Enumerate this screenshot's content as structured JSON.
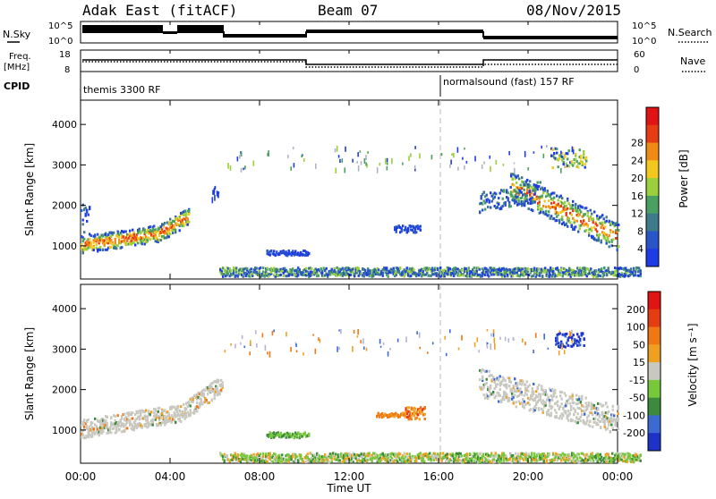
{
  "header": {
    "radar": "Adak East (fitACF)",
    "beam": "Beam 07",
    "date": "08/Nov/2015"
  },
  "top_panels": {
    "nsky_label": "N.Sky",
    "nsky_ticks": [
      "10^5",
      "10^0"
    ],
    "nsearch_label": "N.Search",
    "freq_label_1": "Freq.",
    "freq_label_2": "[MHz]",
    "freq_ticks": [
      "18",
      "8"
    ],
    "nave_label": "Nave",
    "nave_ticks": [
      "60",
      "0"
    ],
    "cpid_label": "CPID",
    "cpid_segments": [
      "themis 3300 RF",
      "normalsound (fast) 157 RF"
    ]
  },
  "chart_data": [
    {
      "type": "heatmap",
      "panel": "power",
      "ylabel": "Slant Range [km]",
      "yticks": [
        1000,
        2000,
        3000,
        4000
      ],
      "ylim": [
        180,
        4600
      ],
      "xlim": [
        0,
        24
      ],
      "colorbar": {
        "label": "Power [dB]",
        "ticks": [
          4,
          8,
          12,
          16,
          20,
          24,
          28
        ],
        "colors": [
          "#1e3ce6",
          "#2a55c8",
          "#3f7a8a",
          "#4aa060",
          "#9ccf3c",
          "#f2c81e",
          "#f08a16",
          "#e63c14",
          "#e01414"
        ]
      }
    },
    {
      "type": "heatmap",
      "panel": "velocity",
      "ylabel": "Slant Range [km]",
      "yticks": [
        1000,
        2000,
        3000,
        4000
      ],
      "ylim": [
        180,
        4600
      ],
      "xlim": [
        0,
        24
      ],
      "colorbar": {
        "label": "Velocity [m s⁻¹]",
        "ticks": [
          "200",
          "100",
          "50",
          "15",
          "-15",
          "-50",
          "-100",
          "-200"
        ],
        "colors": [
          "#1e32c8",
          "#3c6ad2",
          "#3c8a3c",
          "#78c83c",
          "#c8c8c0",
          "#f0a020",
          "#f07814",
          "#e63c14",
          "#e01414"
        ]
      }
    }
  ],
  "xaxis": {
    "ticks": [
      "00:00",
      "04:00",
      "08:00",
      "12:00",
      "16:00",
      "20:00",
      "00:00"
    ],
    "label": "Time UT"
  }
}
